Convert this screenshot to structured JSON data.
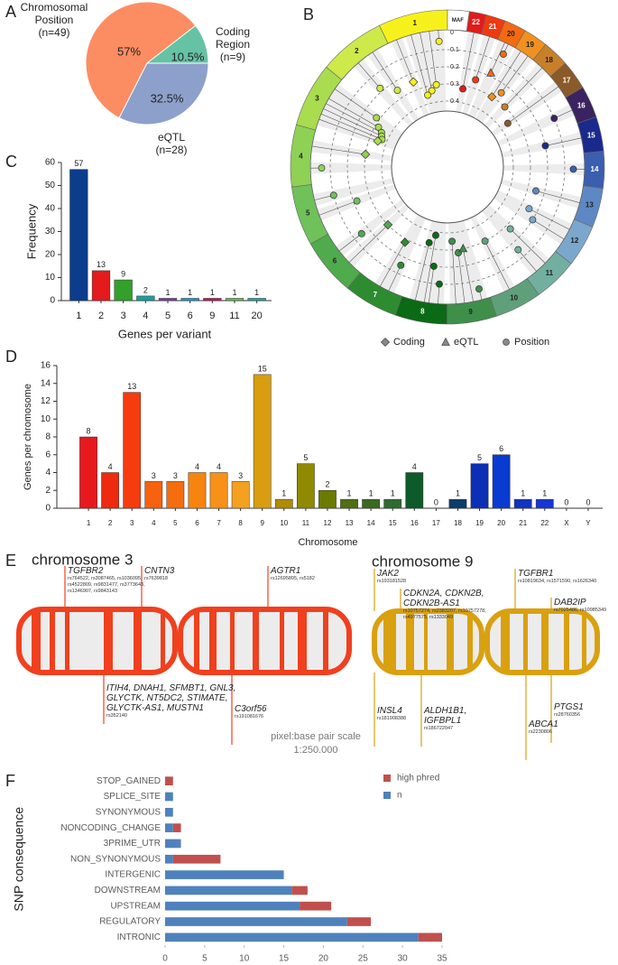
{
  "panel_labels": [
    "A",
    "B",
    "C",
    "D",
    "E",
    "F"
  ],
  "chart_data": [
    {
      "type": "pie",
      "categories": [
        "Chromosomal Position",
        "eQTL",
        "Coding Region"
      ],
      "category_notes": [
        "(n=49)",
        "(n=28)",
        "(n=9)"
      ],
      "values": [
        57,
        32.5,
        10.5
      ],
      "value_labels": [
        "57%",
        "32.5%",
        "10.5%"
      ],
      "colors": [
        "#fc8d62",
        "#8da0cb",
        "#66c2a5"
      ]
    },
    {
      "type": "bar",
      "categories": [
        "1",
        "2",
        "3",
        "4",
        "5",
        "6",
        "9",
        "11",
        "20"
      ],
      "values": [
        57,
        13,
        9,
        2,
        1,
        1,
        1,
        1,
        1
      ],
      "colors": [
        "#0b3d8c",
        "#e41a1c",
        "#33a02c",
        "#1b9e9e",
        "#7b3fa0",
        "#1f9bd0",
        "#c2185b",
        "#66bd63",
        "#2ca5a5"
      ],
      "xlabel": "Genes per variant",
      "ylabel": "Frequency",
      "ylim": [
        0,
        60
      ],
      "yticks": [
        0,
        10,
        20,
        30,
        40,
        50,
        60
      ]
    },
    {
      "type": "bar",
      "categories": [
        "1",
        "2",
        "3",
        "4",
        "5",
        "6",
        "7",
        "8",
        "9",
        "10",
        "11",
        "12",
        "13",
        "14",
        "15",
        "16",
        "17",
        "18",
        "19",
        "20",
        "21",
        "22",
        "X",
        "Y"
      ],
      "values": [
        8,
        4,
        13,
        3,
        3,
        4,
        4,
        3,
        15,
        1,
        5,
        2,
        1,
        1,
        1,
        4,
        0,
        1,
        5,
        6,
        1,
        1,
        0,
        0
      ],
      "colors": [
        "#e8191d",
        "#ee2a10",
        "#f63b0e",
        "#f6620f",
        "#f56d0f",
        "#f7840f",
        "#f7911a",
        "#f5a020",
        "#d89d10",
        "#b08c00",
        "#8f8a00",
        "#6b7a00",
        "#4f6f10",
        "#3a6a20",
        "#2e6b2e",
        "#0d5a2a",
        "#0a4f5a",
        "#0b3d6a",
        "#0b2fb5",
        "#0a3bd0",
        "#1034c0",
        "#1636d5",
        "#888888",
        "#888888"
      ],
      "xlabel": "Chromosome",
      "ylabel": "Genes per chromosome",
      "ylim": [
        0,
        16
      ],
      "yticks": [
        0,
        2,
        4,
        6,
        8,
        10,
        12,
        14,
        16
      ]
    },
    {
      "type": "hbar",
      "stacked": true,
      "categories": [
        "STOP_GAINED",
        "SPLICE_SITE",
        "SYNONYMOUS",
        "NONCODING_CHANGE",
        "3PRIME_UTR",
        "NON_SYNONYMOUS",
        "INTERGENIC",
        "DOWNSTREAM",
        "UPSTREAM",
        "REGULATORY",
        "INTRONIC"
      ],
      "series": [
        {
          "name": "n",
          "color": "#4f81bd",
          "values": [
            0,
            1,
            1,
            1,
            2,
            1,
            15,
            16,
            17,
            23,
            32
          ]
        },
        {
          "name": "high phred",
          "color": "#c0504d",
          "values": [
            1,
            0,
            0,
            1,
            0,
            6,
            0,
            2,
            4,
            3,
            3
          ]
        }
      ],
      "ylabel": "SNP consequence",
      "xlim": [
        0,
        35
      ],
      "xticks": [
        0,
        5,
        10,
        15,
        20,
        25,
        30,
        35
      ]
    }
  ],
  "circos": {
    "chromosomes": [
      "1",
      "2",
      "3",
      "4",
      "5",
      "6",
      "7",
      "8",
      "9",
      "10",
      "11",
      "12",
      "13",
      "14",
      "15",
      "16",
      "17",
      "18",
      "19",
      "20",
      "21",
      "22"
    ],
    "colors": [
      "#f7f11b",
      "#cde94a",
      "#a9dc4e",
      "#8ed155",
      "#6fc15a",
      "#4fab4c",
      "#2d8c2f",
      "#0b6a15",
      "#3f8f4a",
      "#5fa07a",
      "#72afa0",
      "#7ba7cc",
      "#5e88c4",
      "#3b5fae",
      "#1a2a8c",
      "#3a2360",
      "#8a5a2a",
      "#c87f2a",
      "#f09020",
      "#f36a10",
      "#f03a10",
      "#e21b1b"
    ],
    "axis_label": "MAF",
    "maf_ticks": [
      0,
      0.1,
      0.2,
      0.3,
      0.4
    ],
    "legend": [
      "Coding",
      "eQTL",
      "Position"
    ],
    "points": [
      {
        "chromosome": 0,
        "position": 0.15,
        "maf": 0.05,
        "kind": 2
      },
      {
        "chromosome": 0,
        "position": 0.3,
        "maf": 0.3,
        "kind": 2
      },
      {
        "chromosome": 0,
        "position": 0.45,
        "maf": 0.33,
        "kind": 2
      },
      {
        "chromosome": 0,
        "position": 0.6,
        "maf": 0.35,
        "kind": 2
      },
      {
        "chromosome": 0,
        "position": 0.85,
        "maf": 0.25,
        "kind": 0
      },
      {
        "chromosome": 1,
        "position": 0.3,
        "maf": 0.25,
        "kind": 2
      },
      {
        "chromosome": 1,
        "position": 0.6,
        "maf": 0.18,
        "kind": 2
      },
      {
        "chromosome": 2,
        "position": 0.2,
        "maf": 0.28,
        "kind": 2
      },
      {
        "chromosome": 2,
        "position": 0.4,
        "maf": 0.32,
        "kind": 2
      },
      {
        "chromosome": 2,
        "position": 0.5,
        "maf": 0.35,
        "kind": 2
      },
      {
        "chromosome": 2,
        "position": 0.6,
        "maf": 0.36,
        "kind": 2
      },
      {
        "chromosome": 2,
        "position": 0.7,
        "maf": 0.37,
        "kind": 2
      },
      {
        "chromosome": 2,
        "position": 0.8,
        "maf": 0.35,
        "kind": 0
      },
      {
        "chromosome": 3,
        "position": 0.3,
        "maf": 0.3,
        "kind": 0
      },
      {
        "chromosome": 3,
        "position": 0.7,
        "maf": 0.05,
        "kind": 2
      },
      {
        "chromosome": 4,
        "position": 0.3,
        "maf": 0.1,
        "kind": 2
      },
      {
        "chromosome": 4,
        "position": 0.6,
        "maf": 0.22,
        "kind": 2
      },
      {
        "chromosome": 5,
        "position": 0.4,
        "maf": 0.15,
        "kind": 2
      },
      {
        "chromosome": 5,
        "position": 0.7,
        "maf": 0.3,
        "kind": 0
      },
      {
        "chromosome": 6,
        "position": 0.5,
        "maf": 0.28,
        "kind": 0
      },
      {
        "chromosome": 6,
        "position": 0.7,
        "maf": 0.15,
        "kind": 2
      },
      {
        "chromosome": 7,
        "position": 0.3,
        "maf": 0.33,
        "kind": 2
      },
      {
        "chromosome": 7,
        "position": 0.5,
        "maf": 0.38,
        "kind": 2
      },
      {
        "chromosome": 7,
        "position": 0.6,
        "maf": 0.2,
        "kind": 2
      },
      {
        "chromosome": 7,
        "position": 0.8,
        "maf": 0.1,
        "kind": 2
      },
      {
        "chromosome": 8,
        "position": 0.2,
        "maf": 0.35,
        "kind": 2
      },
      {
        "chromosome": 8,
        "position": 0.4,
        "maf": 0.28,
        "kind": 2
      },
      {
        "chromosome": 8,
        "position": 0.6,
        "maf": 0.3,
        "kind": 1
      },
      {
        "chromosome": 8,
        "position": 0.8,
        "maf": 0.05,
        "kind": 2
      },
      {
        "chromosome": 9,
        "position": 0.5,
        "maf": 0.3,
        "kind": 2
      },
      {
        "chromosome": 10,
        "position": 0.3,
        "maf": 0.15,
        "kind": 2
      },
      {
        "chromosome": 10,
        "position": 0.6,
        "maf": 0.27,
        "kind": 2
      },
      {
        "chromosome": 11,
        "position": 0.4,
        "maf": 0.2,
        "kind": 2
      },
      {
        "chromosome": 11,
        "position": 0.7,
        "maf": 0.25,
        "kind": 2
      },
      {
        "chromosome": 12,
        "position": 0.5,
        "maf": 0.25,
        "kind": 2
      },
      {
        "chromosome": 13,
        "position": 0.5,
        "maf": 0.05,
        "kind": 2
      },
      {
        "chromosome": 14,
        "position": 0.5,
        "maf": 0.2,
        "kind": 2
      },
      {
        "chromosome": 15,
        "position": 0.5,
        "maf": 0.1,
        "kind": 2
      },
      {
        "chromosome": 16,
        "position": 0.5,
        "maf": 0.35,
        "kind": 2
      },
      {
        "chromosome": 17,
        "position": 0.5,
        "maf": 0.3,
        "kind": 2
      },
      {
        "chromosome": 18,
        "position": 0.3,
        "maf": 0.25,
        "kind": 2
      },
      {
        "chromosome": 18,
        "position": 0.7,
        "maf": 0.3,
        "kind": 0
      },
      {
        "chromosome": 19,
        "position": 0.4,
        "maf": 0.05,
        "kind": 2
      },
      {
        "chromosome": 19,
        "position": 0.6,
        "maf": 0.18,
        "kind": 1
      },
      {
        "chromosome": 20,
        "position": 0.5,
        "maf": 0.25,
        "kind": 2
      },
      {
        "chromosome": 21,
        "position": 0.5,
        "maf": 0.32,
        "kind": 2
      }
    ]
  },
  "chromosome_maps": [
    {
      "title": "chromosome 3",
      "color": "#f0401e",
      "top_genes": [
        {
          "name": "TGFBR2",
          "snps": "rs764522, rs3087465, rs1036095, rs4522809, rs9831477, rs3773643, rs1346907, rs9843143"
        },
        {
          "name": "CNTN3",
          "snps": "rs7639818"
        },
        {
          "name": "AGTR1",
          "snps": "rs12695895, rs5182"
        }
      ],
      "bottom_genes": [
        {
          "name": "ITIH4, DNAH1, SFMBT1, GNL3, GLYCTK, NT5DC2, STIMATE, GLYCTK-AS1, MUSTN1",
          "snps": "rs352140"
        },
        {
          "name": "C3orf56",
          "snps": "rs191081676"
        }
      ]
    },
    {
      "title": "chromosome 9",
      "color": "#d9a010",
      "top_genes": [
        {
          "name": "JAK2",
          "snps": "rs193181528"
        },
        {
          "name": "CDKN2A, CDKN2B, CDKN2B-AS1",
          "snps": "rs10757274, rs2383207, rs10757278, rs4977575, rs1333049"
        },
        {
          "name": "TGFBR1",
          "snps": "rs10819634, rs1571590, rs1626340"
        },
        {
          "name": "DAB2IP",
          "snps": "rs7025486, rs10985349"
        }
      ],
      "bottom_genes": [
        {
          "name": "INSL4",
          "snps": "rs181908388"
        },
        {
          "name": "ALDH1B1, IGFBPL1",
          "snps": "rs186722047"
        },
        {
          "name": "PTGS1",
          "snps": "rs28760356"
        },
        {
          "name": "ABCA1",
          "snps": "rs2230806"
        }
      ]
    }
  ],
  "scale_note": [
    "pixel:base pair scale",
    "1:250.000"
  ]
}
